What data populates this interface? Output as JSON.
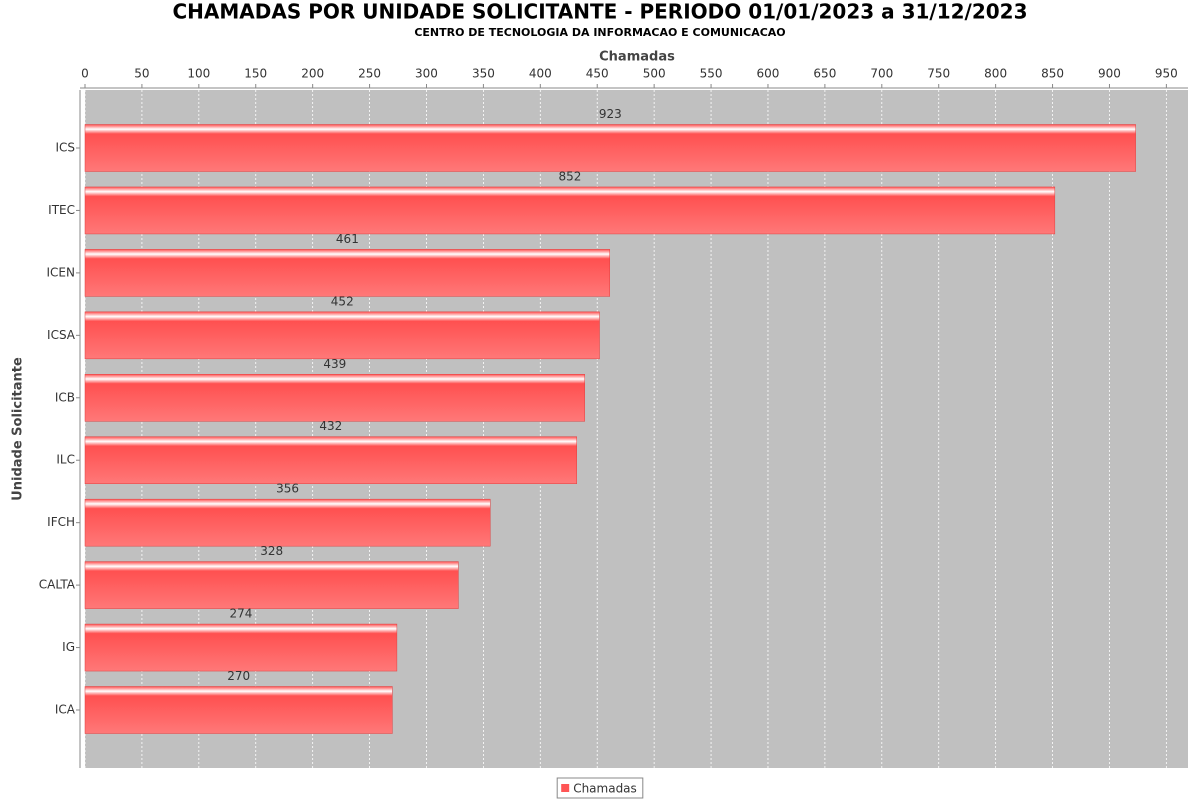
{
  "chart_data": {
    "type": "hbar",
    "title": "CHAMADAS POR UNIDADE SOLICITANTE - PERIODO 01/01/2023 a 31/12/2023",
    "subtitle": "CENTRO DE TECNOLOGIA DA INFORMACAO E COMUNICACAO",
    "x_label": "Chamadas",
    "y_label": "Unidade Solicitante",
    "categories": [
      "ICS",
      "ITEC",
      "ICEN",
      "ICSA",
      "ICB",
      "ILC",
      "IFCH",
      "CALTA",
      "IG",
      "ICA"
    ],
    "series": [
      {
        "name": "Chamadas",
        "color": "#ff5555",
        "values": [
          923,
          852,
          461,
          452,
          439,
          432,
          356,
          328,
          274,
          270
        ]
      }
    ],
    "xlim": [
      0,
      969
    ],
    "xticks": [
      0,
      50,
      100,
      150,
      200,
      250,
      300,
      350,
      400,
      450,
      500,
      550,
      600,
      650,
      700,
      750,
      800,
      850,
      900,
      950
    ],
    "grid": true,
    "legend": "bottom"
  }
}
